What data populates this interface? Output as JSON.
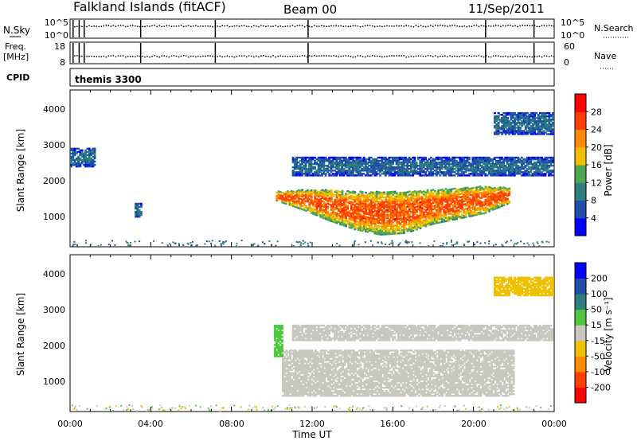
{
  "header": {
    "station": "Falkland Islands (fitACF)",
    "beam": "Beam 00",
    "date": "11/Sep/2011"
  },
  "strips": {
    "nsky": {
      "label": "N.Sky",
      "ticks": [
        "10^5",
        "10^0"
      ],
      "right_label": "N.Search",
      "right_ticks": [
        "10^5",
        "10^0"
      ]
    },
    "freq": {
      "label_top": "Freq.",
      "label_unit": "[MHz]",
      "ticks": [
        "18",
        "8"
      ],
      "right_label": "Nave",
      "right_ticks": [
        "60",
        "0"
      ]
    },
    "cpid": {
      "label": "CPID",
      "value": "themis 3300"
    }
  },
  "colors": {
    "power": [
      "#0000ff",
      "#1f4fa8",
      "#2f7f7f",
      "#4fa84f",
      "#f0c000",
      "#ff8c00",
      "#ff4000",
      "#ff0000"
    ],
    "velocity": [
      "#ff0000",
      "#ff4000",
      "#ff8c00",
      "#f0c000",
      "#c8c8c0",
      "#4fc83f",
      "#2f7f7f",
      "#1f4fa8",
      "#0000ff"
    ]
  },
  "colorbars": {
    "power": {
      "title": "Power [dB]",
      "ticks": [
        "4",
        "8",
        "12",
        "16",
        "20",
        "24",
        "28"
      ]
    },
    "velocity": {
      "title": "Velocity [m s⁻¹]",
      "ticks": [
        "-200",
        "-100",
        "-50",
        "-15",
        "15",
        "50",
        "100",
        "200"
      ]
    }
  },
  "chart_data": [
    {
      "type": "heatmap",
      "name": "power",
      "xlabel": "Time UT",
      "ylabel": "Slant Range [km]",
      "xlim_hours": [
        0,
        24
      ],
      "ylim_km": [
        180,
        4550
      ],
      "x_ticks": [
        "00:00",
        "04:00",
        "08:00",
        "12:00",
        "16:00",
        "20:00",
        "00:00"
      ],
      "y_ticks": [
        "1000",
        "2000",
        "3000",
        "4000"
      ],
      "colorbar_range_db": [
        0,
        32
      ],
      "regions": [
        {
          "t": [
            10.2,
            21.8
          ],
          "r_low": [
            1450,
            1200,
            900,
            650,
            500,
            550,
            800,
            950,
            1100,
            1400
          ],
          "r_high": [
            1700,
            1750,
            1750,
            1700,
            1700,
            1700,
            1750,
            1800,
            1850,
            1800
          ],
          "power": 24
        },
        {
          "t": [
            11.0,
            23.9
          ],
          "r": [
            2150,
            2650
          ],
          "power": 8
        },
        {
          "t": [
            21.0,
            23.9
          ],
          "r": [
            3300,
            3900
          ],
          "power": 8
        },
        {
          "t": [
            0.0,
            1.2
          ],
          "r": [
            2400,
            2900
          ],
          "power": 8
        },
        {
          "t": [
            3.2,
            3.5
          ],
          "r": [
            1000,
            1400
          ],
          "power": 8
        }
      ]
    },
    {
      "type": "heatmap",
      "name": "velocity",
      "xlabel": "Time UT",
      "ylabel": "Slant Range [km]",
      "xlim_hours": [
        0,
        24
      ],
      "ylim_km": [
        180,
        4550
      ],
      "x_ticks": [
        "00:00",
        "04:00",
        "08:00",
        "12:00",
        "16:00",
        "20:00",
        "00:00"
      ],
      "y_ticks": [
        "1000",
        "2000",
        "3000",
        "4000"
      ],
      "colorbar_range_ms": [
        -250,
        250
      ],
      "regions": [
        {
          "t": [
            10.5,
            22.0
          ],
          "r": [
            600,
            1900
          ],
          "velocity": 0
        },
        {
          "t": [
            11.0,
            23.9
          ],
          "r": [
            2150,
            2600
          ],
          "velocity": 0
        },
        {
          "t": [
            10.1,
            10.5
          ],
          "r": [
            1700,
            2600
          ],
          "velocity": 30
        },
        {
          "t": [
            21.0,
            23.9
          ],
          "r": [
            3400,
            3900
          ],
          "velocity": -30
        }
      ]
    }
  ]
}
